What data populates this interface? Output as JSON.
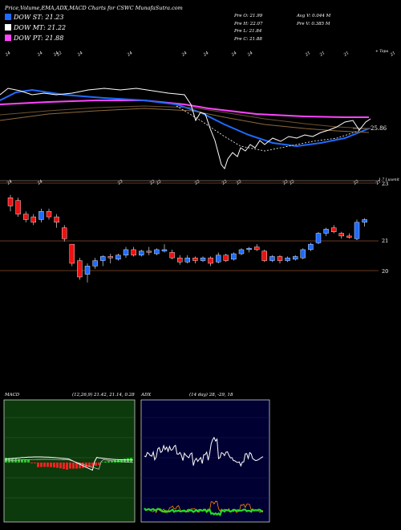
{
  "header": {
    "title": "Price,Volume,EMA,ADX,MACD Charts for CSWC MunafaSutra.com",
    "dow": [
      {
        "label": "DOW ST: 21.23",
        "color": "#1e6bff"
      },
      {
        "label": "DOW MT: 21.22",
        "color": "#ffffff"
      },
      {
        "label": "DOW PT: 21.88",
        "color": "#ff44ff"
      }
    ],
    "pre": [
      "Pre   O: 21.99",
      "Pre   H: 22.07",
      "Pre   L: 21.84",
      "Pre   C: 21.88"
    ],
    "avg": [
      "Avg V: 0.044   M",
      "Pre   V: 0.385 M"
    ]
  },
  "ema_panel": {
    "price_label": "25.86",
    "right_top_label": "+ Topa",
    "top_tick_labels": [
      "24",
      "24",
      "24",
      "22",
      "24",
      "24",
      "24",
      "24",
      "24",
      "24",
      "21",
      "21",
      "21",
      "21"
    ],
    "bottom_tick_labels": [
      "24",
      "24",
      "23",
      "22",
      "22",
      "22",
      "22",
      "22",
      "22",
      "22",
      "22",
      "21"
    ]
  },
  "candle_panel": {
    "corner_label": "1.7 Luxenit",
    "price_levels": [
      "23",
      "21",
      "20"
    ]
  },
  "macd": {
    "label": "MACD",
    "params": "(12,26,9) 21.42, 21.14, 0.28"
  },
  "adx": {
    "label": "ADX",
    "params": "(14 day) 28, -29, 18"
  },
  "chart_data": [
    {
      "type": "line",
      "title": "EMA",
      "note": "Price with EMA overlays",
      "series": [
        {
          "name": "close",
          "color": "#ffffff",
          "values": [
            21.6,
            21.5,
            21.4,
            21.3,
            21.2,
            21.1,
            21.0,
            20.6,
            20.0,
            19.8,
            19.7,
            20.0,
            20.2,
            20.4,
            20.3,
            20.5,
            20.6,
            20.7,
            20.5,
            20.8,
            20.9,
            20.8,
            20.6,
            20.7,
            20.8,
            20.9,
            20.7,
            20.8,
            20.9,
            20.7,
            20.6,
            20.7,
            20.8,
            20.9,
            21.0,
            21.1,
            21.4,
            21.7,
            21.9,
            21.9,
            21.7,
            21.9,
            22.0
          ]
        }
      ]
    },
    {
      "type": "bar",
      "title": "Candles",
      "candles": [
        {
          "o": 23.0,
          "c": 22.7,
          "h": 23.1,
          "l": 22.5,
          "up": false
        },
        {
          "o": 22.9,
          "c": 22.4,
          "h": 23.0,
          "l": 22.3,
          "up": false
        },
        {
          "o": 22.4,
          "c": 22.2,
          "h": 22.5,
          "l": 22.1,
          "up": false
        },
        {
          "o": 22.3,
          "c": 22.1,
          "h": 22.4,
          "l": 22.0,
          "up": false
        },
        {
          "o": 22.2,
          "c": 22.5,
          "h": 22.6,
          "l": 22.1,
          "up": true
        },
        {
          "o": 22.5,
          "c": 22.3,
          "h": 22.6,
          "l": 22.2,
          "up": false
        },
        {
          "o": 22.3,
          "c": 22.1,
          "h": 22.4,
          "l": 21.9,
          "up": false
        },
        {
          "o": 21.9,
          "c": 21.5,
          "h": 22.0,
          "l": 21.4,
          "up": false
        },
        {
          "o": 21.3,
          "c": 20.6,
          "h": 21.3,
          "l": 20.5,
          "up": false
        },
        {
          "o": 20.7,
          "c": 20.1,
          "h": 20.8,
          "l": 20.0,
          "up": false
        },
        {
          "o": 20.2,
          "c": 20.5,
          "h": 20.6,
          "l": 19.9,
          "up": true
        },
        {
          "o": 20.5,
          "c": 20.7,
          "h": 20.8,
          "l": 20.4,
          "up": true
        },
        {
          "o": 20.7,
          "c": 20.85,
          "h": 20.9,
          "l": 20.5,
          "up": true
        },
        {
          "o": 20.85,
          "c": 20.8,
          "h": 20.95,
          "l": 20.6,
          "up": false
        },
        {
          "o": 20.75,
          "c": 20.9,
          "h": 20.95,
          "l": 20.7,
          "up": true
        },
        {
          "o": 20.9,
          "c": 21.1,
          "h": 21.2,
          "l": 20.8,
          "up": true
        },
        {
          "o": 21.1,
          "c": 20.9,
          "h": 21.2,
          "l": 20.85,
          "up": false
        },
        {
          "o": 20.9,
          "c": 21.05,
          "h": 21.1,
          "l": 20.85,
          "up": true
        },
        {
          "o": 21.05,
          "c": 21.0,
          "h": 21.2,
          "l": 20.9,
          "up": false
        },
        {
          "o": 20.95,
          "c": 21.1,
          "h": 21.15,
          "l": 20.9,
          "up": true
        },
        {
          "o": 21.05,
          "c": 21.1,
          "h": 21.3,
          "l": 21.0,
          "up": true
        },
        {
          "o": 21.0,
          "c": 20.8,
          "h": 21.1,
          "l": 20.75,
          "up": false
        },
        {
          "o": 20.8,
          "c": 20.65,
          "h": 20.9,
          "l": 20.55,
          "up": false
        },
        {
          "o": 20.65,
          "c": 20.8,
          "h": 20.9,
          "l": 20.6,
          "up": true
        },
        {
          "o": 20.8,
          "c": 20.7,
          "h": 20.85,
          "l": 20.6,
          "up": false
        },
        {
          "o": 20.7,
          "c": 20.8,
          "h": 20.85,
          "l": 20.65,
          "up": true
        },
        {
          "o": 20.8,
          "c": 20.6,
          "h": 20.85,
          "l": 20.5,
          "up": false
        },
        {
          "o": 20.65,
          "c": 20.9,
          "h": 21.0,
          "l": 20.6,
          "up": true
        },
        {
          "o": 20.9,
          "c": 20.7,
          "h": 20.95,
          "l": 20.65,
          "up": false
        },
        {
          "o": 20.75,
          "c": 20.95,
          "h": 21.0,
          "l": 20.7,
          "up": true
        },
        {
          "o": 20.95,
          "c": 21.1,
          "h": 21.15,
          "l": 20.9,
          "up": true
        },
        {
          "o": 21.1,
          "c": 21.15,
          "h": 21.2,
          "l": 21.0,
          "up": true
        },
        {
          "o": 21.2,
          "c": 21.1,
          "h": 21.3,
          "l": 21.05,
          "up": false
        },
        {
          "o": 21.05,
          "c": 20.7,
          "h": 21.1,
          "l": 20.65,
          "up": false
        },
        {
          "o": 20.7,
          "c": 20.85,
          "h": 20.9,
          "l": 20.65,
          "up": true
        },
        {
          "o": 20.85,
          "c": 20.7,
          "h": 20.9,
          "l": 20.6,
          "up": false
        },
        {
          "o": 20.7,
          "c": 20.8,
          "h": 20.85,
          "l": 20.65,
          "up": true
        },
        {
          "o": 20.75,
          "c": 20.85,
          "h": 20.9,
          "l": 20.7,
          "up": true
        },
        {
          "o": 20.8,
          "c": 21.1,
          "h": 21.15,
          "l": 20.75,
          "up": true
        },
        {
          "o": 21.1,
          "c": 21.3,
          "h": 21.35,
          "l": 21.05,
          "up": true
        },
        {
          "o": 21.35,
          "c": 21.7,
          "h": 21.75,
          "l": 21.3,
          "up": true
        },
        {
          "o": 21.7,
          "c": 21.85,
          "h": 21.9,
          "l": 21.6,
          "up": true
        },
        {
          "o": 21.9,
          "c": 21.75,
          "h": 22.0,
          "l": 21.7,
          "up": false
        },
        {
          "o": 21.7,
          "c": 21.6,
          "h": 21.75,
          "l": 21.5,
          "up": false
        },
        {
          "o": 21.6,
          "c": 21.55,
          "h": 21.7,
          "l": 21.5,
          "up": false
        },
        {
          "o": 21.5,
          "c": 22.1,
          "h": 22.2,
          "l": 21.45,
          "up": true
        },
        {
          "o": 22.1,
          "c": 22.2,
          "h": 22.25,
          "l": 21.95,
          "up": true
        }
      ],
      "ylim": [
        19.6,
        23.3
      ]
    }
  ]
}
